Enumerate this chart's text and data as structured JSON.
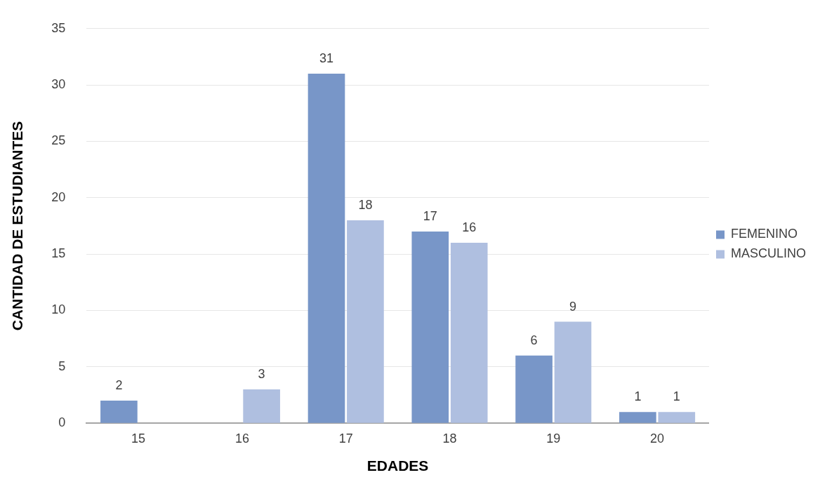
{
  "chart_data": {
    "type": "bar",
    "xlabel": "EDADES",
    "ylabel": "CANTIDAD DE ESTUDIANTES",
    "categories": [
      "15",
      "16",
      "17",
      "18",
      "19",
      "20"
    ],
    "series": [
      {
        "name": "FEMENINO",
        "color": "#7896c8",
        "values": [
          2,
          null,
          31,
          17,
          6,
          1
        ]
      },
      {
        "name": "MASCULINO",
        "color": "#afbfe0",
        "values": [
          null,
          3,
          18,
          16,
          9,
          1
        ]
      }
    ],
    "ylim": [
      0,
      35
    ],
    "yticks": [
      0,
      5,
      10,
      15,
      20,
      25,
      30,
      35
    ],
    "grid": "y",
    "legend": "right",
    "data_labels": true
  }
}
